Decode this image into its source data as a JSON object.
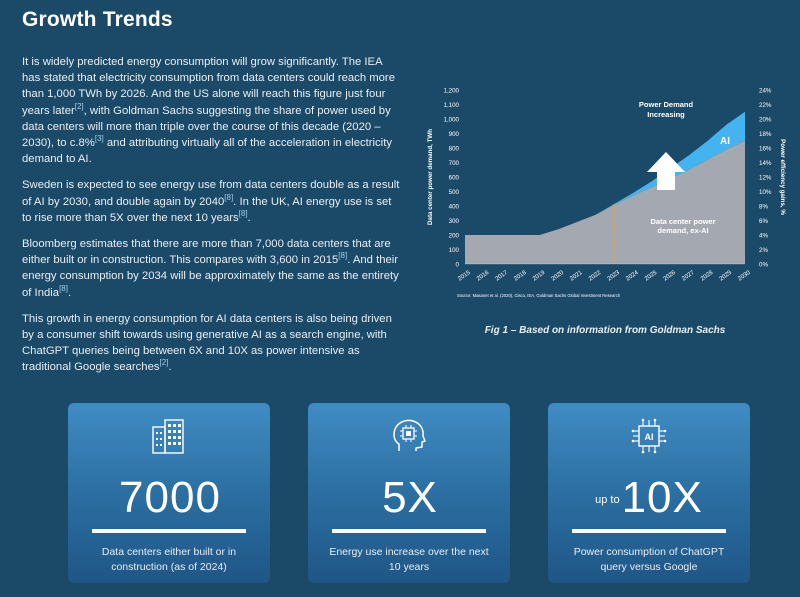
{
  "page": {
    "title": "Growth Trends"
  },
  "article": {
    "p1": [
      "It is widely predicted energy consumption will grow significantly. The IEA has stated that electricity consumption from data centers could reach more than 1,000 TWh by 2026. And the US alone will reach this figure just four years later",
      "[2]",
      ", with Goldman Sachs suggesting the share of power used by data centers will more than triple over the course of this decade (2020 – 2030), to c.8%",
      "[3]",
      " and attributing virtually all of the acceleration in electricity demand to AI."
    ],
    "p2": [
      "Sweden is expected to see energy use from data centers double as a result of AI by 2030, and double again by 2040",
      "[8]",
      ". In the UK, AI energy use is set to rise more than 5X over the next 10 years",
      "[8]",
      "."
    ],
    "p3": [
      "Bloomberg estimates that there are more than 7,000 data centers that are either built or in construction. This compares with 3,600 in 2015",
      "[8]",
      ". And their energy consumption by 2034 will be approximately the same as the entirety of India",
      "[8]",
      "."
    ],
    "p4": [
      "This growth in energy consumption for AI data centers is also being driven by a consumer shift towards using generative AI as a search engine, with ChatGPT queries being between 6X and 10X as power intensive as traditional Google searches",
      "[2]",
      "."
    ]
  },
  "chart_data": {
    "type": "area",
    "ylabel": "Data center power demand, TWh",
    "y2label": "Power efficiency gains, %",
    "ylim": [
      0,
      1200
    ],
    "y2lim": [
      0,
      24
    ],
    "yticks": [
      "0",
      "100",
      "200",
      "300",
      "400",
      "500",
      "600",
      "700",
      "800",
      "900",
      "1,000",
      "1,100",
      "1,200"
    ],
    "y2ticks": [
      "0%",
      "2%",
      "4%",
      "6%",
      "8%",
      "10%",
      "12%",
      "14%",
      "16%",
      "18%",
      "20%",
      "22%",
      "24%"
    ],
    "x": [
      "2015",
      "2016",
      "2017",
      "2018",
      "2019",
      "2020",
      "2021",
      "2022",
      "2023",
      "2024",
      "2025",
      "2026",
      "2027",
      "2028",
      "2029",
      "2030"
    ],
    "series": [
      {
        "name": "Data center power demand, ex-AI",
        "values": [
          200,
          200,
          200,
          200,
          200,
          240,
          290,
          340,
          410,
          470,
          530,
          590,
          650,
          720,
          790,
          850
        ]
      },
      {
        "name": "AI",
        "values": [
          0,
          0,
          0,
          0,
          0,
          0,
          0,
          0,
          5,
          20,
          40,
          70,
          100,
          130,
          170,
          200
        ]
      }
    ],
    "annotations": {
      "demand_line1": "Power Demand",
      "demand_line2": "Increasing",
      "exai_line1": "Data center power",
      "exai_line2": "demand, ex-AI",
      "ai_label": "AI"
    },
    "source": "Source: Masanet et al. (2020), Cisco, IEA, Goldman Sachs Global Investment Research",
    "colors": {
      "exai": "#a3a8b1",
      "ai": "#43b4ef",
      "divider": "#f0a04b"
    }
  },
  "figure": {
    "caption": "Fig 1 – Based on information from Goldman Sachs"
  },
  "cards": [
    {
      "prefix": "",
      "stat": "7000",
      "desc": "Data centers either built or in construction (as of 2024)",
      "icon": "buildings-icon"
    },
    {
      "prefix": "",
      "stat": "5X",
      "desc": "Energy use increase over the next 10 years",
      "icon": "ai-head-icon"
    },
    {
      "prefix": "up to",
      "stat": "10X",
      "desc": "Power consumption of ChatGPT query versus Google",
      "icon": "ai-chip-icon"
    }
  ]
}
